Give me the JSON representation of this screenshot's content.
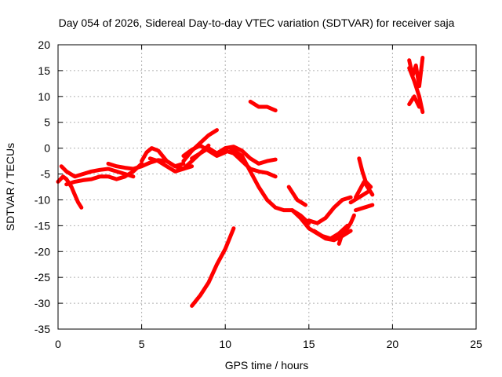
{
  "chart_data": {
    "type": "scatter",
    "title": "Day 054 of 2026, Sidereal Day-to-day VTEC variation (SDTVAR) for receiver saja",
    "xlabel": "GPS time / hours",
    "ylabel": "SDTVAR / TECUs",
    "xlim": [
      0,
      25
    ],
    "ylim": [
      -35,
      20
    ],
    "xticks": [
      0,
      5,
      10,
      15,
      20,
      25
    ],
    "yticks": [
      20,
      15,
      10,
      5,
      0,
      -5,
      -10,
      -15,
      -20,
      -25,
      -30,
      -35
    ],
    "grid": true,
    "marker_color": "#ff0000",
    "series": [
      {
        "x": [
          0.0,
          0.3,
          0.5,
          0.8,
          1.0,
          1.2,
          1.4
        ],
        "y": [
          -6.5,
          -5.5,
          -6.0,
          -7.5,
          -9.0,
          -10.5,
          -11.5
        ]
      },
      {
        "x": [
          0.2,
          0.5,
          1.0,
          1.5,
          2.0,
          2.5,
          3.0,
          3.5,
          4.0,
          4.5
        ],
        "y": [
          -3.5,
          -4.5,
          -5.5,
          -5.0,
          -4.5,
          -4.2,
          -4.0,
          -4.5,
          -5.0,
          -5.5
        ]
      },
      {
        "x": [
          0.5,
          1.0,
          1.5,
          2.0,
          2.5,
          3.0,
          3.5,
          4.0,
          4.5,
          5.0
        ],
        "y": [
          -7.0,
          -6.5,
          -6.2,
          -6.0,
          -5.5,
          -5.5,
          -6.0,
          -5.5,
          -4.5,
          -3.0
        ]
      },
      {
        "x": [
          3.0,
          3.5,
          4.0,
          4.5,
          5.0
        ],
        "y": [
          -3.0,
          -3.5,
          -3.8,
          -4.0,
          -3.5
        ]
      },
      {
        "x": [
          5.0,
          5.3,
          5.6,
          6.0,
          6.5,
          7.0,
          7.5
        ],
        "y": [
          -2.5,
          -0.8,
          0.0,
          -0.5,
          -2.5,
          -3.5,
          -3.0
        ]
      },
      {
        "x": [
          5.0,
          5.5,
          6.0,
          6.5,
          7.0,
          7.5,
          8.0
        ],
        "y": [
          -3.5,
          -2.8,
          -2.3,
          -2.5,
          -3.5,
          -4.0,
          -3.5
        ]
      },
      {
        "x": [
          5.5,
          6.0,
          6.5,
          7.0,
          7.5,
          8.0,
          8.5,
          9.0
        ],
        "y": [
          -2.0,
          -2.5,
          -3.5,
          -4.5,
          -4.0,
          -2.5,
          -1.0,
          0.5
        ]
      },
      {
        "x": [
          7.5,
          8.0,
          8.5,
          9.0,
          9.5
        ],
        "y": [
          -2.5,
          -0.5,
          1.0,
          2.5,
          3.5
        ]
      },
      {
        "x": [
          7.5,
          8.0,
          8.5,
          9.0,
          9.5,
          10.0
        ],
        "y": [
          -1.5,
          -0.3,
          0.5,
          -0.5,
          -1.5,
          -0.8
        ]
      },
      {
        "x": [
          8.0,
          8.5,
          9.0,
          9.5,
          10.0,
          10.5,
          11.0,
          11.5,
          12.0,
          12.5,
          13.0
        ],
        "y": [
          -2.0,
          -1.0,
          0.0,
          -1.0,
          0.0,
          0.3,
          -0.5,
          -2.0,
          -3.0,
          -2.5,
          -2.2
        ]
      },
      {
        "x": [
          10.0,
          10.5,
          11.0,
          11.5,
          12.0,
          12.5,
          13.0
        ],
        "y": [
          -0.5,
          -1.0,
          -2.5,
          -4.0,
          -4.5,
          -4.8,
          -5.5
        ]
      },
      {
        "x": [
          10.3,
          11.0,
          11.5,
          12.0,
          12.5,
          13.0,
          13.5,
          14.0,
          14.5,
          15.0
        ],
        "y": [
          0.0,
          -1.5,
          -4.5,
          -7.5,
          -10.0,
          -11.5,
          -12.0,
          -12.0,
          -13.0,
          -14.5
        ]
      },
      {
        "x": [
          14.0,
          14.5,
          15.0,
          15.5,
          16.0,
          16.5,
          17.0,
          17.5
        ],
        "y": [
          -12.0,
          -13.5,
          -15.5,
          -16.5,
          -17.5,
          -17.8,
          -17.0,
          -16.0
        ]
      },
      {
        "x": [
          13.8,
          14.3,
          14.8
        ],
        "y": [
          -7.5,
          -10.0,
          -11.0
        ]
      },
      {
        "x": [
          15.0,
          15.5,
          16.0,
          16.5,
          17.0,
          17.5
        ],
        "y": [
          -14.0,
          -14.5,
          -13.5,
          -11.5,
          -10.0,
          -9.5
        ]
      },
      {
        "x": [
          15.3,
          15.8,
          16.3,
          16.8,
          17.3
        ],
        "y": [
          -16.0,
          -17.0,
          -17.5,
          -16.5,
          -15.0
        ]
      },
      {
        "x": [
          16.8,
          17.0,
          17.3,
          17.5,
          17.7
        ],
        "y": [
          -18.5,
          -16.5,
          -15.5,
          -14.5,
          -13.0
        ]
      },
      {
        "x": [
          17.5,
          18.0,
          18.5
        ],
        "y": [
          -10.5,
          -9.5,
          -8.5
        ]
      },
      {
        "x": [
          18.0,
          18.2,
          18.4,
          18.7
        ],
        "y": [
          -2.0,
          -4.5,
          -6.5,
          -7.5
        ]
      },
      {
        "x": [
          17.8,
          18.3,
          18.8
        ],
        "y": [
          -9.5,
          -6.5,
          -9.0
        ]
      },
      {
        "x": [
          17.8,
          18.3,
          18.8
        ],
        "y": [
          -12.0,
          -11.5,
          -11.0
        ]
      },
      {
        "x": [
          11.5,
          12.0,
          12.5,
          13.0
        ],
        "y": [
          9.0,
          8.0,
          8.0,
          7.3
        ]
      },
      {
        "x": [
          8.0,
          8.5,
          9.0,
          9.5,
          10.0,
          10.5
        ],
        "y": [
          -30.5,
          -28.5,
          -26.0,
          -22.5,
          -19.5,
          -15.5
        ]
      },
      {
        "x": [
          21.0,
          21.2,
          21.4,
          21.6,
          21.8
        ],
        "y": [
          17.0,
          14.0,
          16.0,
          12.0,
          17.5
        ]
      },
      {
        "x": [
          21.0,
          21.3,
          21.6,
          21.8
        ],
        "y": [
          15.5,
          13.0,
          10.0,
          7.0
        ]
      },
      {
        "x": [
          21.0,
          21.3,
          21.6
        ],
        "y": [
          8.5,
          10.0,
          8.0
        ]
      }
    ]
  }
}
